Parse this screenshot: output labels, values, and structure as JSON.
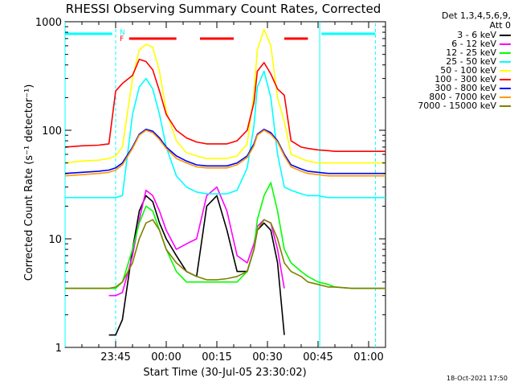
{
  "chart_data": {
    "type": "line",
    "title": "RHESSI Observing Summary Count Rates, Corrected",
    "xlabel": "Start Time (30-Jul-05 23:30:02)",
    "ylabel": "Corrected Count Rate (s⁻¹ detector⁻¹)",
    "yscale": "log",
    "ylim": [
      1,
      1000
    ],
    "yticks": [
      "1",
      "10",
      "100",
      "1000"
    ],
    "xlim_minutes": [
      0,
      95
    ],
    "xticks": [
      "23:45",
      "00:00",
      "00:15",
      "00:30",
      "00:45",
      "01:00"
    ],
    "legend_header": [
      "Det 1,3,4,5,6,9,",
      "Att 0"
    ],
    "legend_position": "right",
    "flag_label_F": "F",
    "flag_label_N": "N",
    "x": [
      0,
      5,
      10,
      13,
      15,
      17,
      20,
      22,
      24,
      26,
      28,
      30,
      33,
      36,
      39,
      42,
      45,
      48,
      51,
      54,
      56,
      57,
      59,
      61,
      63,
      65,
      67,
      70,
      72,
      75,
      78,
      80,
      85,
      90,
      95
    ],
    "series": [
      {
        "name": "3 - 6 keV",
        "color": "#000000",
        "values": [
          null,
          null,
          null,
          1.3,
          1.3,
          1.8,
          8,
          18,
          25,
          22,
          14,
          10,
          7,
          5,
          4.5,
          20,
          25,
          12,
          5,
          5,
          8,
          12,
          14,
          12,
          6,
          1.3,
          null,
          null,
          null,
          null,
          null,
          null,
          null,
          null,
          null
        ]
      },
      {
        "name": "6 - 12 keV",
        "color": "#ff00ff",
        "values": [
          null,
          null,
          null,
          3,
          3,
          3.2,
          7,
          15,
          28,
          25,
          18,
          12,
          8,
          9,
          10,
          25,
          30,
          18,
          7,
          6,
          9,
          13,
          15,
          14,
          8,
          3.5,
          null,
          null,
          null,
          null,
          null,
          null,
          null,
          null,
          null
        ]
      },
      {
        "name": "12 - 25 keV",
        "color": "#00ff00",
        "values": [
          3.5,
          3.5,
          3.5,
          3.5,
          3.5,
          4,
          8,
          14,
          20,
          18,
          12,
          8,
          5,
          4,
          4,
          4,
          4,
          4,
          4,
          5,
          8,
          15,
          25,
          33,
          18,
          8,
          6,
          5,
          4.5,
          4,
          3.8,
          3.6,
          3.5,
          3.5,
          3.5
        ]
      },
      {
        "name": "25 - 50 keV",
        "color": "#00ffff",
        "values": [
          24,
          24,
          24,
          24,
          24,
          25,
          140,
          250,
          300,
          240,
          140,
          70,
          38,
          30,
          27,
          26,
          26,
          26,
          28,
          45,
          110,
          250,
          350,
          200,
          60,
          30,
          28,
          26,
          25,
          25,
          24,
          24,
          24,
          24,
          24
        ]
      },
      {
        "name": "50 - 100 keV",
        "color": "#ffff00",
        "values": [
          50,
          52,
          53,
          55,
          58,
          70,
          300,
          550,
          620,
          580,
          350,
          150,
          80,
          62,
          58,
          55,
          55,
          55,
          58,
          75,
          220,
          550,
          850,
          600,
          200,
          120,
          60,
          55,
          52,
          50,
          50,
          50,
          50,
          50,
          50
        ]
      },
      {
        "name": "100 - 300 keV",
        "color": "#ff0000",
        "values": [
          70,
          72,
          73,
          75,
          230,
          270,
          320,
          450,
          430,
          360,
          230,
          140,
          100,
          85,
          78,
          75,
          75,
          75,
          80,
          100,
          180,
          350,
          420,
          330,
          240,
          210,
          80,
          70,
          68,
          66,
          65,
          64,
          64,
          64,
          64
        ]
      },
      {
        "name": "300 - 800 keV",
        "color": "#0000ff",
        "values": [
          40,
          41,
          42,
          43,
          45,
          50,
          70,
          92,
          102,
          98,
          85,
          70,
          58,
          52,
          48,
          47,
          47,
          47,
          50,
          58,
          75,
          92,
          102,
          95,
          80,
          60,
          48,
          44,
          42,
          41,
          40,
          40,
          40,
          40,
          40
        ]
      },
      {
        "name": "800 - 7000 keV",
        "color": "#ff9900",
        "values": [
          38,
          39,
          40,
          41,
          43,
          48,
          68,
          90,
          100,
          95,
          82,
          68,
          55,
          50,
          46,
          45,
          45,
          45,
          48,
          56,
          72,
          90,
          100,
          92,
          78,
          58,
          46,
          42,
          40,
          39,
          38,
          38,
          38,
          38,
          38
        ]
      },
      {
        "name": "7000 - 15000 keV",
        "color": "#808000",
        "values": [
          3.5,
          3.5,
          3.5,
          3.5,
          3.6,
          4,
          6,
          10,
          14,
          15,
          12,
          8,
          6,
          5,
          4.5,
          4.2,
          4.2,
          4.3,
          4.5,
          5,
          8,
          12,
          15,
          14,
          10,
          6,
          5,
          4.5,
          4,
          3.8,
          3.6,
          3.6,
          3.5,
          3.5,
          3.5
        ]
      }
    ]
  },
  "footer_date": "18-Oct-2021 17:50"
}
